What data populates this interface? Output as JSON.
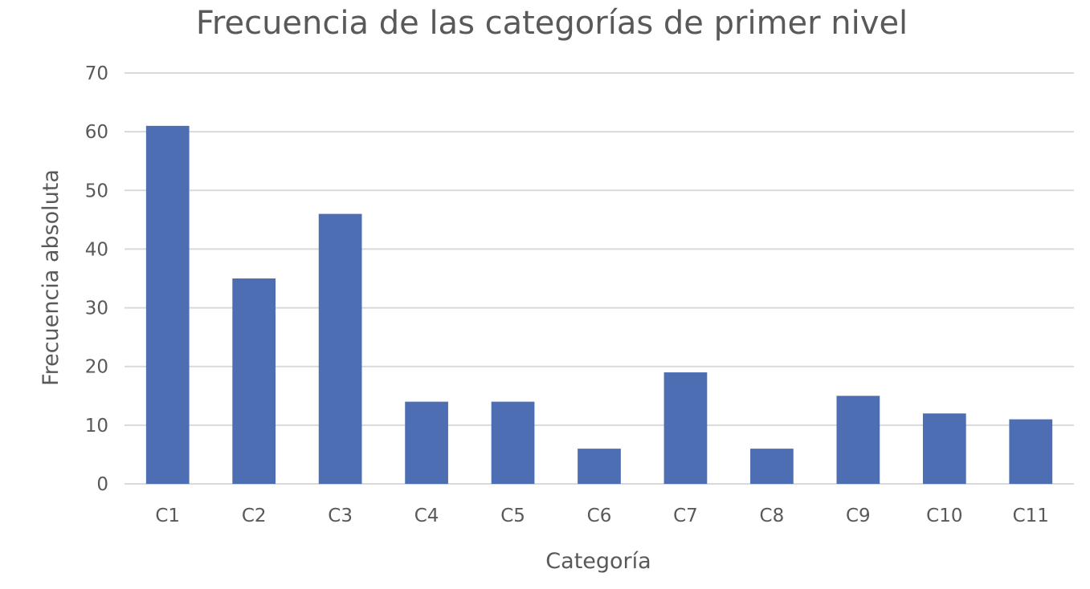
{
  "chart_data": {
    "type": "bar",
    "title": "Frecuencia de las categorías de primer nivel",
    "xlabel": "Categoría",
    "ylabel": "Frecuencia absoluta",
    "categories": [
      "C1",
      "C2",
      "C3",
      "C4",
      "C5",
      "C6",
      "C7",
      "C8",
      "C9",
      "C10",
      "C11"
    ],
    "values": [
      61,
      35,
      46,
      14,
      14,
      6,
      19,
      6,
      15,
      12,
      11
    ],
    "ylim": [
      0,
      70
    ],
    "yticks": [
      "0",
      "10",
      "20",
      "30",
      "40",
      "50",
      "60",
      "70"
    ],
    "grid": true,
    "legend": "none",
    "bar_color": "#4e6eb4"
  }
}
